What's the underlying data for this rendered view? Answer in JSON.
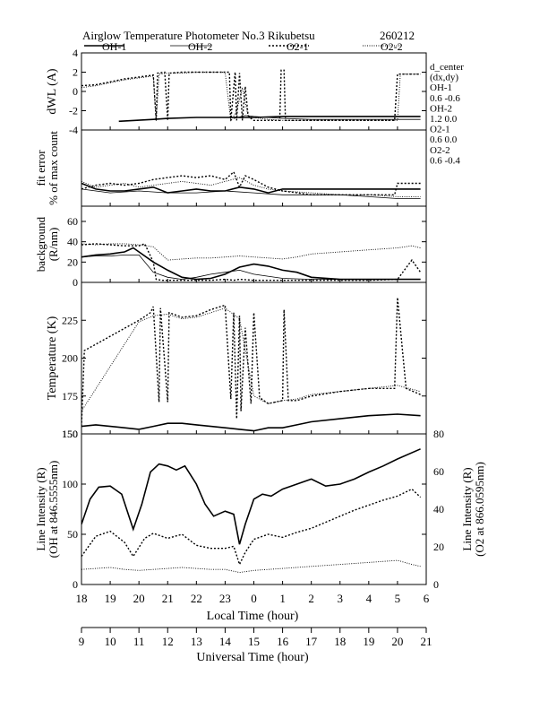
{
  "header": {
    "title": "Airglow Temperature Photometer No.3  Rikubetsu",
    "date_code": "260212"
  },
  "legend": [
    {
      "name": "OH-1",
      "dash": "solid",
      "width": 1.6
    },
    {
      "name": "OH-2",
      "dash": "solid",
      "width": 0.8
    },
    {
      "name": "O2-1",
      "dash": "2,2",
      "width": 1.4
    },
    {
      "name": "O2-2",
      "dash": "1,1.5",
      "width": 0.9
    }
  ],
  "side_notes": {
    "lines": [
      "d_center",
      "(dx,dy)",
      "OH-1",
      "0.6  -0.6",
      "OH-2",
      "1.2   0.0",
      "O2-1",
      "0.6   0.0",
      "O2-2",
      "0.6  -0.4"
    ]
  },
  "axes": {
    "local_time_label": "Local Time (hour)",
    "universal_time_label": "Universal Time (hour)",
    "local_ticks": [
      "18",
      "19",
      "20",
      "21",
      "22",
      "23",
      "0",
      "1",
      "2",
      "3",
      "4",
      "5",
      "6"
    ],
    "universal_ticks": [
      "9",
      "10",
      "11",
      "12",
      "13",
      "14",
      "15",
      "16",
      "17",
      "18",
      "19",
      "20",
      "21"
    ]
  },
  "chart_data": [
    {
      "type": "line",
      "panel": "dwl",
      "ylabel": "dWL (A)",
      "ylim": [
        -4,
        4
      ],
      "yticks": [
        -4,
        -2,
        0,
        2,
        4
      ],
      "xlim": [
        18,
        30
      ],
      "series": [
        {
          "name": "OH-1",
          "x": [
            19.3,
            20.5,
            21,
            22,
            23,
            24,
            25,
            26,
            27,
            28,
            29.5,
            29.8
          ],
          "y": [
            -3.1,
            -2.9,
            -2.8,
            -2.7,
            -2.7,
            -2.7,
            -2.6,
            -2.6,
            -2.6,
            -2.6,
            -2.6,
            -2.6
          ]
        },
        {
          "name": "OH-2",
          "x": [
            23.3,
            23.7,
            24,
            25,
            26,
            27,
            28,
            29,
            29.8
          ],
          "y": [
            -2.8,
            -2.5,
            -2.6,
            -2.8,
            -2.9,
            -2.9,
            -2.9,
            -2.9,
            -2.9
          ]
        },
        {
          "name": "O2-1",
          "x": [
            18,
            18.5,
            19,
            19.5,
            20,
            20.5,
            20.6,
            20.65,
            20.9,
            21.0,
            21.05,
            21.5,
            22,
            22.5,
            23,
            23.15,
            23.2,
            23.35,
            23.4,
            23.5,
            23.6,
            23.7,
            23.8,
            23.9,
            24,
            24.5,
            24.9,
            24.95,
            25.05,
            25.1,
            25.5,
            26,
            26.5,
            27,
            27.5,
            28,
            28.9,
            29.0,
            29.1,
            29.5,
            29.8
          ],
          "y": [
            0.6,
            0.7,
            1.0,
            1.3,
            1.5,
            1.7,
            -3.0,
            1.9,
            2.0,
            -3.0,
            1.9,
            2.0,
            2.0,
            2.0,
            2.0,
            2.0,
            -3.0,
            2.0,
            -3.0,
            1.9,
            -3.0,
            0.5,
            -2.5,
            -2.8,
            -3.0,
            -3.0,
            -3.0,
            2.2,
            2.2,
            -3.0,
            -3.0,
            -3.0,
            -3.0,
            -3.0,
            -3.0,
            -3.0,
            -3.0,
            1.8,
            1.8,
            1.8,
            1.8
          ]
        },
        {
          "name": "O2-2",
          "x": [
            18,
            18.5,
            19,
            19.5,
            20,
            20.5,
            20.6,
            20.7,
            21,
            21.5,
            22,
            22.5,
            23,
            23.2,
            23.4,
            23.6,
            23.8,
            24,
            24.5,
            25,
            25.5,
            26,
            27,
            28,
            29,
            29.1,
            29.5,
            29.8
          ],
          "y": [
            0.4,
            0.6,
            0.9,
            1.2,
            1.4,
            1.6,
            -3.1,
            1.8,
            1.9,
            1.9,
            2.0,
            2.0,
            2.0,
            -3.1,
            -2.0,
            0.4,
            -2.6,
            -2.7,
            -2.9,
            -3.0,
            -3.0,
            -3.0,
            -3.0,
            -3.0,
            -3.0,
            1.8,
            1.8,
            1.8
          ]
        }
      ]
    },
    {
      "type": "line",
      "panel": "fit",
      "ylabel": [
        "fit error",
        "% of max count"
      ],
      "ylim": [
        0,
        4
      ],
      "xlim": [
        18,
        30
      ],
      "series": [
        {
          "name": "OH-1",
          "x": [
            18,
            18.5,
            19,
            19.5,
            20,
            20.5,
            21,
            21.5,
            22,
            22.5,
            23,
            23.5,
            24,
            24.5,
            25,
            26,
            27,
            28,
            29,
            29.8
          ],
          "y": [
            1.2,
            0.9,
            0.8,
            0.8,
            0.9,
            1.0,
            0.7,
            0.8,
            0.9,
            0.8,
            0.8,
            1.0,
            0.9,
            0.7,
            0.9,
            0.9,
            0.9,
            0.9,
            0.9,
            0.9
          ]
        },
        {
          "name": "OH-2",
          "x": [
            18,
            18.5,
            19,
            20,
            21,
            22,
            23,
            24,
            25,
            26,
            27,
            28,
            29,
            29.8
          ],
          "y": [
            0.9,
            0.8,
            0.7,
            0.8,
            0.7,
            0.7,
            0.8,
            0.7,
            0.6,
            0.6,
            0.6,
            0.5,
            0.4,
            0.4
          ]
        },
        {
          "name": "O2-1",
          "x": [
            18,
            18.5,
            19,
            19.5,
            20,
            20.5,
            21,
            21.5,
            22,
            22.5,
            23,
            23.3,
            23.5,
            23.7,
            24,
            24.5,
            25,
            25.5,
            26,
            27,
            28,
            28.9,
            29.0,
            29.5,
            29.8
          ],
          "y": [
            0.9,
            1.1,
            1.2,
            1.1,
            1.2,
            1.4,
            1.5,
            1.6,
            1.5,
            1.6,
            1.4,
            1.8,
            1.0,
            1.6,
            1.4,
            1.0,
            0.8,
            0.7,
            0.6,
            0.6,
            0.6,
            0.6,
            1.2,
            1.2,
            1.2
          ]
        },
        {
          "name": "O2-2",
          "x": [
            18,
            18.5,
            19,
            19.5,
            20,
            20.5,
            21,
            21.5,
            22,
            22.5,
            23,
            23.5,
            24,
            24.5,
            25,
            26,
            27,
            28,
            29,
            29.8
          ],
          "y": [
            1.3,
            1.0,
            1.1,
            1.2,
            1.0,
            1.1,
            1.2,
            1.3,
            1.2,
            1.1,
            1.3,
            1.5,
            1.1,
            0.9,
            0.8,
            0.7,
            0.6,
            0.6,
            0.5,
            0.5
          ]
        }
      ]
    },
    {
      "type": "line",
      "panel": "background",
      "ylabel": [
        "background",
        "(R/nm)"
      ],
      "ylim": [
        0,
        75
      ],
      "yticks": [
        0,
        20,
        40,
        60
      ],
      "xlim": [
        18,
        30
      ],
      "series": [
        {
          "name": "OH-1",
          "x": [
            18,
            18.5,
            19,
            19.5,
            19.8,
            20,
            20.5,
            21,
            21.5,
            22,
            22.5,
            23,
            23.5,
            24,
            24.5,
            25,
            25.5,
            26,
            27,
            28,
            29,
            29.8
          ],
          "y": [
            25,
            27,
            28,
            30,
            34,
            30,
            20,
            12,
            5,
            3,
            4,
            8,
            15,
            18,
            16,
            12,
            10,
            5,
            3,
            3,
            3,
            3
          ]
        },
        {
          "name": "OH-2",
          "x": [
            18,
            18.5,
            19,
            19.5,
            20,
            20.5,
            21,
            21.5,
            22,
            22.5,
            23,
            23.5,
            24,
            25,
            26,
            27,
            28,
            29,
            29.8
          ],
          "y": [
            25,
            26,
            26,
            27,
            27,
            10,
            5,
            3,
            5,
            8,
            10,
            12,
            8,
            4,
            3,
            3,
            3,
            3,
            3
          ]
        },
        {
          "name": "O2-1",
          "x": [
            18,
            18.5,
            19,
            19.5,
            20,
            20.2,
            20.5,
            20.6,
            20.8,
            21,
            21.5,
            22,
            22.5,
            23,
            23.3,
            23.5,
            24,
            24.5,
            25,
            25.5,
            26,
            26.5,
            27,
            27.5,
            28,
            29,
            29.5,
            29.8
          ],
          "y": [
            37,
            38,
            37,
            36,
            36,
            38,
            20,
            3,
            2,
            2,
            2,
            2,
            2,
            3,
            2,
            3,
            2,
            2,
            2,
            2,
            2,
            2,
            2,
            2,
            2,
            3,
            22,
            10
          ]
        },
        {
          "name": "O2-2",
          "x": [
            18,
            18.5,
            19,
            19.5,
            20,
            20.5,
            21,
            21.5,
            22,
            22.5,
            23,
            23.5,
            24,
            24.5,
            25,
            25.5,
            26,
            27,
            28,
            29,
            29.5,
            29.8
          ],
          "y": [
            38,
            37,
            38,
            38,
            37,
            35,
            22,
            23,
            24,
            24,
            25,
            26,
            25,
            24,
            23,
            25,
            28,
            30,
            32,
            34,
            36,
            34
          ]
        }
      ]
    },
    {
      "type": "line",
      "panel": "temperature",
      "ylabel": "Temperature (K)",
      "ylim": [
        150,
        250
      ],
      "yticks": [
        150,
        175,
        200,
        225
      ],
      "xlim": [
        18,
        30
      ],
      "series": [
        {
          "name": "OH-1",
          "x": [
            18,
            18.5,
            19,
            19.5,
            20,
            20.5,
            21,
            21.5,
            22,
            22.5,
            23,
            23.5,
            24,
            24.5,
            25,
            25.5,
            26,
            27,
            28,
            29,
            29.8
          ],
          "y": [
            155,
            156,
            155,
            154,
            153,
            155,
            157,
            157,
            156,
            155,
            154,
            153,
            152,
            154,
            154,
            156,
            158,
            160,
            162,
            163,
            162
          ]
        },
        {
          "name": "O2-1",
          "x": [
            18,
            18.1,
            20,
            20.4,
            20.5,
            20.7,
            20.75,
            21.0,
            21.05,
            21.5,
            22,
            22.5,
            23,
            23.2,
            23.3,
            23.4,
            23.5,
            23.55,
            23.7,
            23.9,
            24.0,
            24.2,
            24.5,
            25.0,
            25.05,
            25.2,
            25.5,
            26,
            27,
            28,
            28.9,
            29.0,
            29.3,
            29.8
          ],
          "y": [
            155,
            205,
            225,
            230,
            234,
            171,
            233,
            171,
            230,
            227,
            228,
            232,
            235,
            173,
            230,
            160,
            228,
            165,
            220,
            170,
            230,
            174,
            170,
            172,
            232,
            172,
            172,
            175,
            178,
            180,
            180,
            240,
            180,
            176
          ]
        },
        {
          "name": "O2-2",
          "x": [
            18,
            20,
            20.5,
            21,
            21.5,
            22,
            22.5,
            23,
            23.5,
            24,
            24.5,
            25,
            25.5,
            26,
            27,
            28,
            29,
            29.8
          ],
          "y": [
            165,
            224,
            228,
            229,
            226,
            227,
            230,
            233,
            226,
            175,
            170,
            172,
            173,
            176,
            178,
            180,
            182,
            178
          ]
        }
      ]
    },
    {
      "type": "line",
      "panel": "intensity",
      "ylabel_left": [
        "Line Intensity (R)",
        "(OH at 846.5555nm)"
      ],
      "ylabel_right": [
        "Line Intensity (R)",
        "(O2 at 866.0595nm)"
      ],
      "ylim": [
        0,
        150
      ],
      "yticks": [
        0,
        50,
        100,
        150
      ],
      "ylim_right": [
        0,
        80
      ],
      "yticks_right": [
        0,
        20,
        40,
        60,
        80
      ],
      "xlim": [
        18,
        30
      ],
      "series": [
        {
          "name": "OH-1",
          "x": [
            18,
            18.3,
            18.6,
            19,
            19.4,
            19.8,
            20.1,
            20.4,
            20.7,
            21,
            21.3,
            21.6,
            22,
            22.3,
            22.6,
            23,
            23.3,
            23.5,
            23.7,
            24,
            24.3,
            24.6,
            25,
            25.5,
            26,
            26.5,
            27,
            27.5,
            28,
            28.5,
            29,
            29.8
          ],
          "y": [
            60,
            85,
            97,
            98,
            90,
            55,
            80,
            112,
            120,
            118,
            114,
            118,
            100,
            80,
            68,
            73,
            70,
            40,
            60,
            85,
            90,
            88,
            95,
            100,
            105,
            98,
            100,
            105,
            112,
            118,
            125,
            135
          ]
        },
        {
          "name": "O2-1",
          "x": [
            18,
            18.5,
            19,
            19.5,
            19.8,
            20.2,
            20.5,
            21,
            21.5,
            22,
            22.5,
            23,
            23.3,
            23.5,
            23.7,
            24,
            24.5,
            25,
            25.5,
            26,
            26.5,
            27,
            27.5,
            28,
            28.5,
            29,
            29.5,
            29.8
          ],
          "y": [
            28,
            48,
            53,
            42,
            28,
            46,
            51,
            46,
            50,
            39,
            36,
            36,
            38,
            20,
            32,
            45,
            50,
            47,
            52,
            56,
            62,
            68,
            74,
            79,
            84,
            88,
            95,
            87
          ]
        },
        {
          "name": "O2-2",
          "x": [
            18,
            18.5,
            19,
            19.5,
            20,
            20.5,
            21,
            21.5,
            22,
            22.5,
            23,
            23.5,
            24,
            24.5,
            25,
            26,
            27,
            28,
            29,
            29.5,
            29.8
          ],
          "y": [
            15,
            16,
            17,
            15,
            14,
            15,
            16,
            17,
            16,
            15,
            15,
            12,
            14,
            15,
            16,
            18,
            20,
            22,
            24,
            20,
            18
          ]
        }
      ]
    }
  ]
}
